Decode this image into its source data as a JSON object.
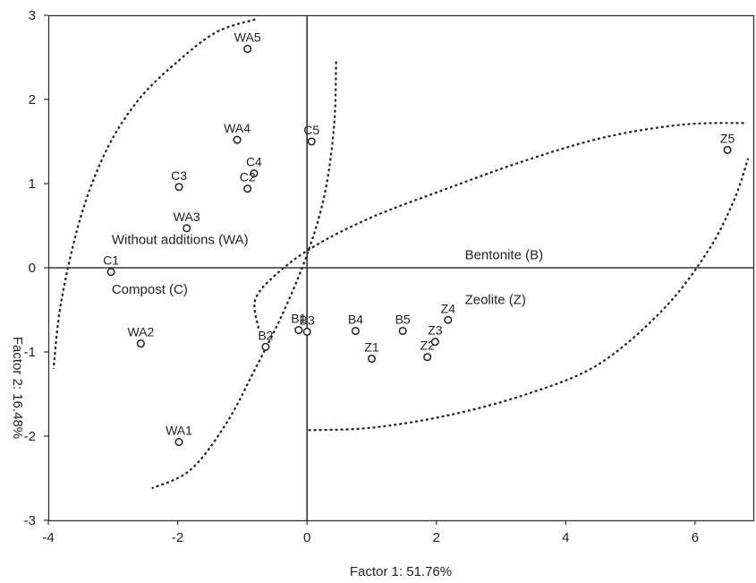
{
  "chart_data": {
    "type": "scatter",
    "xlabel": "Factor 1: 51.76%",
    "ylabel": "Factor 2: 16.48%",
    "xlim": [
      -4,
      6.9
    ],
    "ylim": [
      -3,
      3
    ],
    "x_ticks": [
      -4,
      -2,
      0,
      2,
      4,
      6
    ],
    "y_ticks": [
      -3,
      -2,
      -1,
      0,
      1,
      2,
      3
    ],
    "grid": false,
    "zero_lines": true,
    "points": [
      {
        "label": "WA5",
        "x": -0.92,
        "y": 2.6
      },
      {
        "label": "WA4",
        "x": -1.08,
        "y": 1.52
      },
      {
        "label": "C5",
        "x": 0.07,
        "y": 1.5
      },
      {
        "label": "C4",
        "x": -0.82,
        "y": 1.12
      },
      {
        "label": "C2",
        "x": -0.92,
        "y": 0.94
      },
      {
        "label": "C3",
        "x": -1.98,
        "y": 0.96
      },
      {
        "label": "WA3",
        "x": -1.86,
        "y": 0.47
      },
      {
        "label": "C1",
        "x": -3.03,
        "y": -0.05
      },
      {
        "label": "WA2",
        "x": -2.57,
        "y": -0.9
      },
      {
        "label": "WA1",
        "x": -1.98,
        "y": -2.07
      },
      {
        "label": "B2",
        "x": -0.64,
        "y": -0.94
      },
      {
        "label": "B1",
        "x": -0.13,
        "y": -0.74
      },
      {
        "label": "B3",
        "x": 0.0,
        "y": -0.76
      },
      {
        "label": "B4",
        "x": 0.75,
        "y": -0.75
      },
      {
        "label": "B5",
        "x": 1.48,
        "y": -0.75
      },
      {
        "label": "Z1",
        "x": 1.0,
        "y": -1.08
      },
      {
        "label": "Z2",
        "x": 1.86,
        "y": -1.06
      },
      {
        "label": "Z3",
        "x": 1.98,
        "y": -0.88
      },
      {
        "label": "Z4",
        "x": 2.18,
        "y": -0.62
      },
      {
        "label": "Z5",
        "x": 6.5,
        "y": 1.4
      }
    ],
    "groups": [
      {
        "label": "Without additions (WA)",
        "x": -3.02,
        "y": 0.28
      },
      {
        "label": "Compost (C)",
        "x": -3.02,
        "y": -0.31
      },
      {
        "label": "Bentonite (B)",
        "x": 2.44,
        "y": 0.1
      },
      {
        "label": "Zeolite (Z)",
        "x": 2.44,
        "y": -0.43
      }
    ],
    "ellipses": [
      {
        "name": "WA",
        "path": [
          [
            -0.8,
            2.95
          ],
          [
            -1.4,
            2.8
          ],
          [
            -2.0,
            2.45
          ],
          [
            -2.6,
            2.0
          ],
          [
            -3.1,
            1.4
          ],
          [
            -3.5,
            0.6
          ],
          [
            -3.8,
            -0.4
          ],
          [
            -3.92,
            -1.2
          ]
        ]
      },
      {
        "name": "C",
        "path": [
          [
            0.45,
            2.45
          ],
          [
            0.42,
            1.7
          ],
          [
            0.28,
            0.9
          ],
          [
            0.02,
            0.2
          ],
          [
            -0.35,
            -0.5
          ],
          [
            -0.8,
            -1.2
          ],
          [
            -1.25,
            -1.85
          ],
          [
            -1.8,
            -2.4
          ],
          [
            -2.4,
            -2.62
          ]
        ]
      },
      {
        "name": "B",
        "path": [
          [
            -0.75,
            -0.72
          ],
          [
            -0.8,
            -0.38
          ],
          [
            -0.48,
            -0.08
          ],
          [
            0.1,
            0.25
          ],
          [
            1.0,
            0.6
          ],
          [
            2.2,
            0.95
          ],
          [
            3.4,
            1.28
          ],
          [
            4.6,
            1.55
          ],
          [
            5.8,
            1.7
          ],
          [
            6.8,
            1.72
          ]
        ]
      },
      {
        "name": "Z",
        "path": [
          [
            0.02,
            -1.93
          ],
          [
            1.0,
            -1.9
          ],
          [
            2.2,
            -1.75
          ],
          [
            3.4,
            -1.5
          ],
          [
            4.5,
            -1.15
          ],
          [
            5.5,
            -0.5
          ],
          [
            6.2,
            0.2
          ],
          [
            6.6,
            0.8
          ],
          [
            6.82,
            1.3
          ]
        ]
      }
    ]
  }
}
